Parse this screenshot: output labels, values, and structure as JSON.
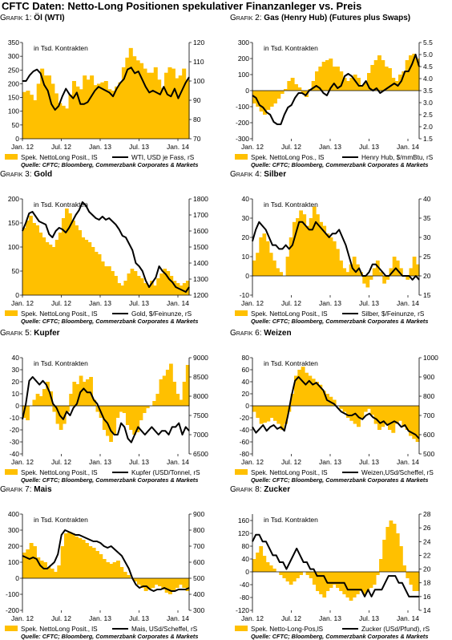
{
  "title": "CFTC Daten: Netto-Long Positionen spekulativer Finanzanleger vs. Preis",
  "colors": {
    "bars": "#FFC000",
    "line": "#000000",
    "axis": "#000000"
  },
  "panels": [
    {
      "grafik": "Grafik 1:",
      "name": "Öl (WTI)",
      "unit": "in Tsd. Kontrakten",
      "legend_bar": "Spek. NettoLong Posit., lS",
      "legend_line": "WTI, USD je Fass, rS",
      "source": "Quelle: CFTC; Bloomberg, Commerzbank Corporates & Markets",
      "chart_data": {
        "type": "area+line",
        "x_ticks": [
          "Jan. 12",
          "Jul. 12",
          "Jan. 13",
          "Jul. 13",
          "Jan. 14"
        ],
        "y_left": {
          "min": 0,
          "max": 350,
          "ticks": [
            0,
            50,
            100,
            150,
            200,
            250,
            300,
            350
          ]
        },
        "y_right": {
          "min": 70,
          "max": 120,
          "ticks": [
            70,
            80,
            90,
            100,
            110,
            120
          ]
        },
        "series_bar": [
          170,
          175,
          160,
          140,
          200,
          255,
          230,
          230,
          200,
          165,
          130,
          120,
          110,
          160,
          210,
          190,
          180,
          230,
          215,
          230,
          195,
          200,
          205,
          210,
          180,
          175,
          190,
          205,
          260,
          295,
          330,
          300,
          285,
          275,
          255,
          240,
          240,
          260,
          215,
          185,
          240,
          260,
          255,
          220,
          230,
          255,
          215
        ],
        "series_line": [
          100,
          100,
          103,
          105,
          106,
          104,
          98,
          95,
          88,
          85,
          87,
          92,
          96,
          93,
          91,
          94,
          88,
          88,
          89,
          92,
          95,
          97,
          96,
          95,
          94,
          92,
          96,
          99,
          101,
          106,
          107,
          104,
          105,
          101,
          97,
          94,
          95,
          94,
          93,
          97,
          93,
          92,
          96,
          91,
          95,
          99,
          102
        ]
      }
    },
    {
      "grafik": "Grafik 2:",
      "name": "Gas (Henry Hub) (Futures plus Swaps)",
      "unit": "in Tsd. Kontrakten",
      "legend_bar": "Spek. NettoLong Pos., lS",
      "legend_line": "Henry Hub, $/mmBtu, rS",
      "source": "Quelle: CFTC; Bloomberg, Commerzbank Corporates & Markets",
      "chart_data": {
        "type": "area+line",
        "x_ticks": [
          "Jan. 12",
          "Jul. 12",
          "Jan. 13",
          "Jul. 13",
          "Jan. 14"
        ],
        "y_left": {
          "min": -300,
          "max": 300,
          "ticks": [
            -300,
            -200,
            -100,
            0,
            100,
            200,
            300
          ]
        },
        "y_right": {
          "min": 1.5,
          "max": 5.5,
          "ticks": [
            1.5,
            2.0,
            2.5,
            3.0,
            3.5,
            4.0,
            4.5,
            5.0,
            5.5
          ]
        },
        "series_bar": [
          -80,
          -100,
          -130,
          -150,
          -120,
          -100,
          -80,
          -50,
          -20,
          10,
          60,
          80,
          40,
          20,
          -20,
          -40,
          10,
          60,
          120,
          150,
          180,
          190,
          200,
          150,
          150,
          120,
          80,
          60,
          80,
          100,
          80,
          30,
          50,
          110,
          160,
          190,
          220,
          190,
          150,
          140,
          80,
          60,
          100,
          120,
          190,
          220,
          230,
          200
        ],
        "series_line": [
          3.3,
          3.2,
          2.9,
          2.8,
          2.6,
          2.5,
          2.2,
          2.1,
          2.1,
          2.5,
          2.8,
          2.9,
          3.2,
          3.4,
          3.4,
          3.3,
          3.5,
          3.6,
          3.7,
          3.6,
          3.4,
          3.3,
          3.6,
          3.8,
          3.6,
          3.7,
          4.1,
          4.2,
          4.1,
          3.9,
          3.7,
          3.7,
          3.9,
          3.6,
          3.5,
          3.6,
          3.4,
          3.5,
          3.6,
          3.7,
          3.8,
          3.7,
          3.9,
          4.3,
          4.3,
          4.6,
          5.0,
          4.5
        ]
      }
    },
    {
      "grafik": "Grafik 3:",
      "name": "Gold",
      "unit": "in Tsd. Kontrakten",
      "legend_bar": "Spek. NettoLong Posit., lS",
      "legend_line": "Gold, $/Feinunze, rS",
      "source": "Quelle: CFTC; Bloomberg, Commerzbank Corporates & Markets",
      "chart_data": {
        "type": "area+line",
        "x_ticks": [
          "Jan. 12",
          "Jul. 12",
          "Jan. 13",
          "Jul. 13",
          "Jan. 14"
        ],
        "y_left": {
          "min": 0,
          "max": 200,
          "ticks": [
            0,
            50,
            100,
            150,
            200
          ]
        },
        "y_right": {
          "min": 1200,
          "max": 1800,
          "ticks": [
            1200,
            1300,
            1400,
            1500,
            1600,
            1700,
            1800
          ]
        },
        "series_bar": [
          140,
          155,
          165,
          150,
          145,
          130,
          120,
          110,
          105,
          100,
          115,
          130,
          160,
          180,
          170,
          155,
          145,
          135,
          120,
          115,
          110,
          100,
          90,
          85,
          70,
          60,
          60,
          50,
          40,
          25,
          20,
          30,
          45,
          55,
          50,
          40,
          35,
          25,
          20,
          30,
          20,
          35,
          45,
          55,
          50,
          40,
          30,
          25,
          20,
          25,
          30
        ],
        "series_line": [
          1600,
          1650,
          1710,
          1720,
          1690,
          1660,
          1650,
          1640,
          1580,
          1560,
          1600,
          1620,
          1610,
          1590,
          1620,
          1660,
          1700,
          1730,
          1780,
          1760,
          1720,
          1700,
          1680,
          1670,
          1690,
          1670,
          1680,
          1660,
          1640,
          1610,
          1570,
          1560,
          1520,
          1480,
          1400,
          1380,
          1350,
          1290,
          1250,
          1280,
          1310,
          1380,
          1350,
          1330,
          1300,
          1280,
          1250,
          1240,
          1230,
          1220,
          1250
        ]
      }
    },
    {
      "grafik": "Grafik 4:",
      "name": "Silber",
      "unit": "in Tsd. Kontrakten",
      "legend_bar": "Spek. NettoLong Posit., lS",
      "legend_line": "Silber, $/Feinunze, rS",
      "source": "Quelle: CFTC; Bloomberg, Commerzbank Corporates & Markets",
      "chart_data": {
        "type": "area+line",
        "x_ticks": [
          "Jan. 12",
          "Jul. 12",
          "Jan. 13",
          "Jul. 13",
          "Jan. 14"
        ],
        "y_left": {
          "min": -10,
          "max": 40,
          "ticks": [
            -10,
            0,
            10,
            20,
            30,
            40
          ]
        },
        "y_right": {
          "min": 15,
          "max": 40,
          "ticks": [
            15,
            20,
            25,
            30,
            35,
            40
          ]
        },
        "series_bar": [
          8,
          12,
          20,
          22,
          18,
          12,
          8,
          4,
          2,
          0,
          10,
          20,
          28,
          30,
          34,
          32,
          26,
          30,
          36,
          32,
          28,
          26,
          22,
          20,
          18,
          14,
          8,
          4,
          2,
          6,
          10,
          6,
          2,
          -4,
          -6,
          -2,
          4,
          8,
          2,
          -4,
          -2,
          4,
          10,
          8,
          4,
          0,
          -2,
          4,
          10,
          6
        ],
        "series_line": [
          29,
          32,
          34,
          33,
          32,
          30,
          28,
          28,
          27,
          27,
          28,
          27,
          28,
          31,
          34,
          34,
          33,
          32,
          32,
          34,
          33,
          32,
          31,
          30,
          31,
          31,
          32,
          30,
          28,
          25,
          22,
          21,
          22,
          20,
          20,
          21,
          23,
          23,
          22,
          21,
          20,
          20,
          21,
          22,
          21,
          20,
          20,
          20,
          19,
          20,
          19
        ]
      }
    },
    {
      "grafik": "Grafik 5:",
      "name": "Kupfer",
      "unit": "in Tsd. Kontrakten",
      "legend_bar": "Spek. NettoLong Posit., lS",
      "legend_line": "Kupfer (USD/Tonnel, rS",
      "source": "Quelle: CFTC; Bloomberg, Commerzbank Corporates & Markets",
      "chart_data": {
        "type": "area+line",
        "x_ticks": [
          "Jan. 12",
          "Jul. 12",
          "Jan. 13",
          "Jul. 13",
          "Jan. 14"
        ],
        "y_left": {
          "min": -40,
          "max": 40,
          "ticks": [
            -40,
            -30,
            -20,
            -10,
            0,
            10,
            20,
            30,
            40
          ]
        },
        "y_right": {
          "min": 6500,
          "max": 9000,
          "ticks": [
            6500,
            7000,
            7500,
            8000,
            8500,
            9000
          ]
        },
        "series_bar": [
          -10,
          -12,
          0,
          5,
          10,
          8,
          14,
          20,
          12,
          -5,
          -15,
          -20,
          -15,
          -5,
          10,
          20,
          18,
          25,
          20,
          22,
          24,
          5,
          -5,
          -10,
          -20,
          -25,
          -30,
          -24,
          -10,
          -5,
          -6,
          -16,
          -20,
          -24,
          -22,
          -12,
          -6,
          -2,
          0,
          4,
          10,
          22,
          25,
          30,
          35,
          20,
          10,
          5,
          20,
          34
        ],
        "series_line": [
          7400,
          7800,
          8400,
          8500,
          8400,
          8300,
          8400,
          8300,
          8100,
          7800,
          7700,
          7500,
          7400,
          7600,
          7500,
          7700,
          7800,
          8100,
          8200,
          8100,
          8100,
          7900,
          7800,
          7600,
          7400,
          7300,
          7100,
          7000,
          7000,
          7300,
          7200,
          6900,
          6800,
          7000,
          7200,
          7100,
          7000,
          7100,
          7200,
          7100,
          7000,
          7100,
          7100,
          7000,
          7200,
          7200,
          7300,
          7000,
          7200,
          7100
        ]
      }
    },
    {
      "grafik": "Grafik 6:",
      "name": "Weizen",
      "unit": "in Tsd. Kontrakten",
      "legend_bar": "Spek. NettoLong Posit., lS",
      "legend_line": "Weizen,USd/Scheffel, rS",
      "source": "Quelle: CFTC; Bloomberg, Commerzbank Corporates & Markets",
      "chart_data": {
        "type": "area+line",
        "x_ticks": [
          "Jan. 12",
          "Jul. 12",
          "Jan. 13",
          "Jul. 13",
          "Jan. 14"
        ],
        "y_left": {
          "min": -80,
          "max": 80,
          "ticks": [
            -80,
            -60,
            -40,
            -20,
            0,
            20,
            40,
            60,
            80
          ]
        },
        "y_right": {
          "min": 500,
          "max": 1000,
          "ticks": [
            500,
            600,
            700,
            800,
            900,
            1000
          ]
        },
        "series_bar": [
          -10,
          -20,
          -30,
          -28,
          -26,
          -20,
          -25,
          -30,
          -40,
          -30,
          -10,
          20,
          50,
          60,
          65,
          55,
          50,
          45,
          40,
          35,
          25,
          20,
          15,
          10,
          0,
          -5,
          -10,
          -20,
          -25,
          -30,
          -35,
          -20,
          -10,
          -5,
          -15,
          -30,
          -40,
          -35,
          -30,
          -40,
          -45,
          -30,
          -25,
          -35,
          -40,
          -50,
          -55,
          -60
        ],
        "series_line": [
          640,
          610,
          630,
          650,
          620,
          640,
          650,
          630,
          640,
          620,
          700,
          800,
          880,
          900,
          880,
          860,
          880,
          860,
          870,
          850,
          830,
          780,
          770,
          760,
          740,
          720,
          710,
          700,
          700,
          710,
          690,
          680,
          700,
          710,
          690,
          680,
          660,
          670,
          650,
          660,
          670,
          660,
          640,
          650,
          620,
          610,
          600,
          580
        ]
      }
    },
    {
      "grafik": "Grafik 7:",
      "name": "Mais",
      "unit": "in Tsd. Kontrakten",
      "legend_bar": "Spek. NettoLong Posit., lS",
      "legend_line": "Mais, USd/Scheffel, rS",
      "source": "Quelle: CFTC; Bloomberg, Commerzbank Corporates & Markets",
      "chart_data": {
        "type": "area+line",
        "x_ticks": [
          "Jan. 12",
          "Jul. 12",
          "Jan. 13",
          "Jul. 13",
          "Jan. 14"
        ],
        "y_left": {
          "min": -200,
          "max": 400,
          "ticks": [
            -200,
            -100,
            0,
            100,
            200,
            300,
            400
          ]
        },
        "y_right": {
          "min": 300,
          "max": 900,
          "ticks": [
            300,
            400,
            500,
            600,
            700,
            800,
            900
          ]
        },
        "series_bar": [
          160,
          180,
          220,
          200,
          130,
          110,
          100,
          70,
          60,
          40,
          80,
          200,
          280,
          290,
          280,
          260,
          250,
          240,
          220,
          200,
          190,
          170,
          150,
          120,
          100,
          90,
          100,
          110,
          70,
          40,
          20,
          0,
          -20,
          -40,
          -60,
          -80,
          -70,
          -60,
          -40,
          -50,
          -70,
          -90,
          -100,
          -80,
          -60,
          -40,
          -60,
          -80
        ],
        "series_line": [
          640,
          630,
          620,
          630,
          620,
          580,
          560,
          560,
          580,
          600,
          650,
          770,
          800,
          790,
          780,
          770,
          770,
          760,
          750,
          740,
          730,
          730,
          720,
          700,
          690,
          700,
          680,
          660,
          640,
          600,
          560,
          500,
          460,
          440,
          450,
          450,
          430,
          420,
          430,
          430,
          440,
          430,
          420,
          420,
          430,
          430,
          430,
          440
        ]
      }
    },
    {
      "grafik": "Grafik 8:",
      "name": "Zucker",
      "unit": "in Tsd. Kontrakten",
      "legend_bar": "Spek. Netto-Long-Pos,lS",
      "legend_line": "Zucker (USd/Pfund), rS",
      "source": "Quelle: CFTC; Bloomberg, Commerzbank Corporates & Markets",
      "chart_data": {
        "type": "area+line",
        "x_ticks": [
          "Jan. 12",
          "Jul. 12",
          "Jan. 13",
          "Jul. 13",
          "Jan. 14"
        ],
        "y_left": {
          "min": -120,
          "max": 180,
          "ticks": [
            -120,
            -80,
            -40,
            0,
            40,
            80,
            120,
            160
          ]
        },
        "y_right": {
          "min": 14,
          "max": 28,
          "ticks": [
            14,
            16,
            18,
            20,
            22,
            24,
            26,
            28
          ]
        },
        "series_bar": [
          40,
          60,
          80,
          50,
          30,
          20,
          10,
          0,
          -10,
          -20,
          -30,
          -40,
          -30,
          -20,
          -10,
          0,
          -10,
          -20,
          -40,
          -60,
          -70,
          -80,
          -60,
          -50,
          -40,
          -50,
          -60,
          -70,
          -80,
          -90,
          -80,
          -70,
          -60,
          -70,
          -60,
          -50,
          -40,
          -10,
          40,
          100,
          140,
          160,
          150,
          120,
          80,
          20,
          -20,
          -40,
          -60,
          -60
        ],
        "series_line": [
          24,
          25,
          25,
          24,
          24,
          23,
          22,
          22,
          21,
          21,
          20,
          21,
          22,
          23,
          22,
          21,
          21,
          20,
          20,
          19,
          19,
          19,
          18,
          18,
          18,
          18,
          18,
          18,
          17,
          17,
          17,
          17,
          17,
          16,
          17,
          16,
          17,
          17,
          17,
          18,
          19,
          19,
          19,
          18,
          18,
          17,
          16,
          16,
          16,
          16
        ]
      }
    }
  ]
}
